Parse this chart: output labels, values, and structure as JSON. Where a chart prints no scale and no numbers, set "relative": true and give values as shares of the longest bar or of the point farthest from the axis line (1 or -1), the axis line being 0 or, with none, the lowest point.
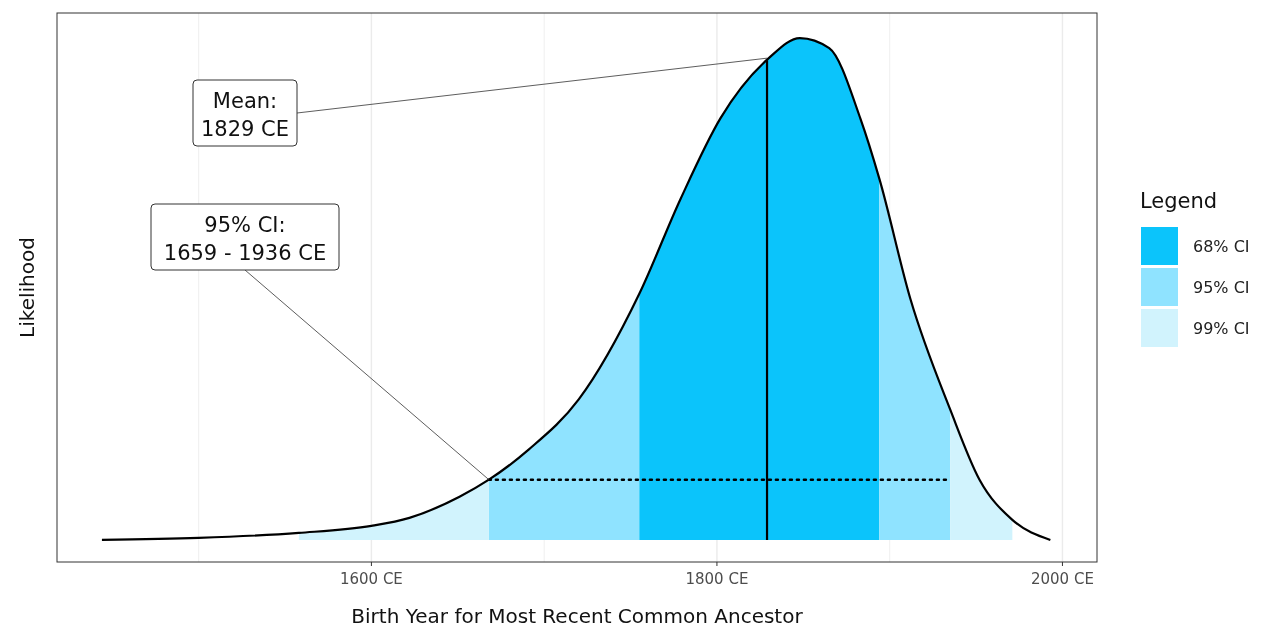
{
  "chart_data": {
    "type": "area",
    "relative": true,
    "xlabel": "Birth Year for Most Recent Common Ancestor",
    "ylabel": "Likelihood",
    "legend_title": "Legend",
    "legend": "right",
    "grid": "x",
    "tick_labels": "x",
    "xlim": [
      1418,
      2020
    ],
    "xticks": [
      {
        "value": 1500,
        "label": null
      },
      {
        "value": 1600,
        "label": "1600 CE"
      },
      {
        "value": 1700,
        "label": null
      },
      {
        "value": 1800,
        "label": "1800 CE"
      },
      {
        "value": 1900,
        "label": null
      },
      {
        "value": 2000,
        "label": "2000 CE"
      }
    ],
    "series": [
      {
        "name": "68% CI",
        "color": "#0bc4fb",
        "x": [
          1755,
          1779,
          1802,
          1830,
          1848,
          1865,
          1883,
          1894
        ],
        "values": [
          0.49,
          0.68,
          0.84,
          0.96,
          1,
          0.98,
          0.84,
          0.72
        ]
      },
      {
        "name": "95% CI",
        "color": "#8fe3ff",
        "x": [
          1668,
          1691,
          1720,
          1755,
          1800,
          1894,
          1912,
          1935
        ],
        "values": [
          0.12,
          0.18,
          0.28,
          0.49,
          null,
          0.72,
          0.48,
          0.26
        ]
      },
      {
        "name": "99% CI",
        "color": "#d1f3fd",
        "x": [
          1558,
          1600,
          1622,
          1651,
          1668,
          1800,
          1935,
          1952,
          1971
        ],
        "values": [
          0.014,
          0.028,
          0.044,
          0.086,
          0.12,
          null,
          0.26,
          0.12,
          0.04
        ]
      },
      {
        "type": "line",
        "color": "#000000",
        "x": [
          1444,
          1500,
          1558,
          1600,
          1622,
          1651,
          1668,
          1691,
          1720,
          1755,
          1779,
          1802,
          1830,
          1848,
          1865,
          1883,
          1894,
          1912,
          1935,
          1952,
          1971,
          1993
        ],
        "values": [
          0,
          0.004,
          0.014,
          0.028,
          0.044,
          0.086,
          0.12,
          0.18,
          0.28,
          0.49,
          0.68,
          0.84,
          0.96,
          1,
          0.98,
          0.84,
          0.72,
          0.48,
          0.26,
          0.12,
          0.04,
          0
        ]
      },
      {
        "type": "line",
        "line_style": "dotted",
        "color": "#000000",
        "x": [
          1668,
          1935
        ],
        "values": [
          0.12,
          0.12
        ]
      }
    ],
    "ref_lines": [
      {
        "axis": "x",
        "value": 1829,
        "color": "#000000"
      }
    ],
    "annotations": [
      {
        "text": "Mean:\n1829 CE",
        "x": 1829,
        "y": 0.96
      },
      {
        "text": "95% CI:\n1659 - 1936 CE",
        "x": 1668,
        "y": 0.12
      }
    ]
  }
}
